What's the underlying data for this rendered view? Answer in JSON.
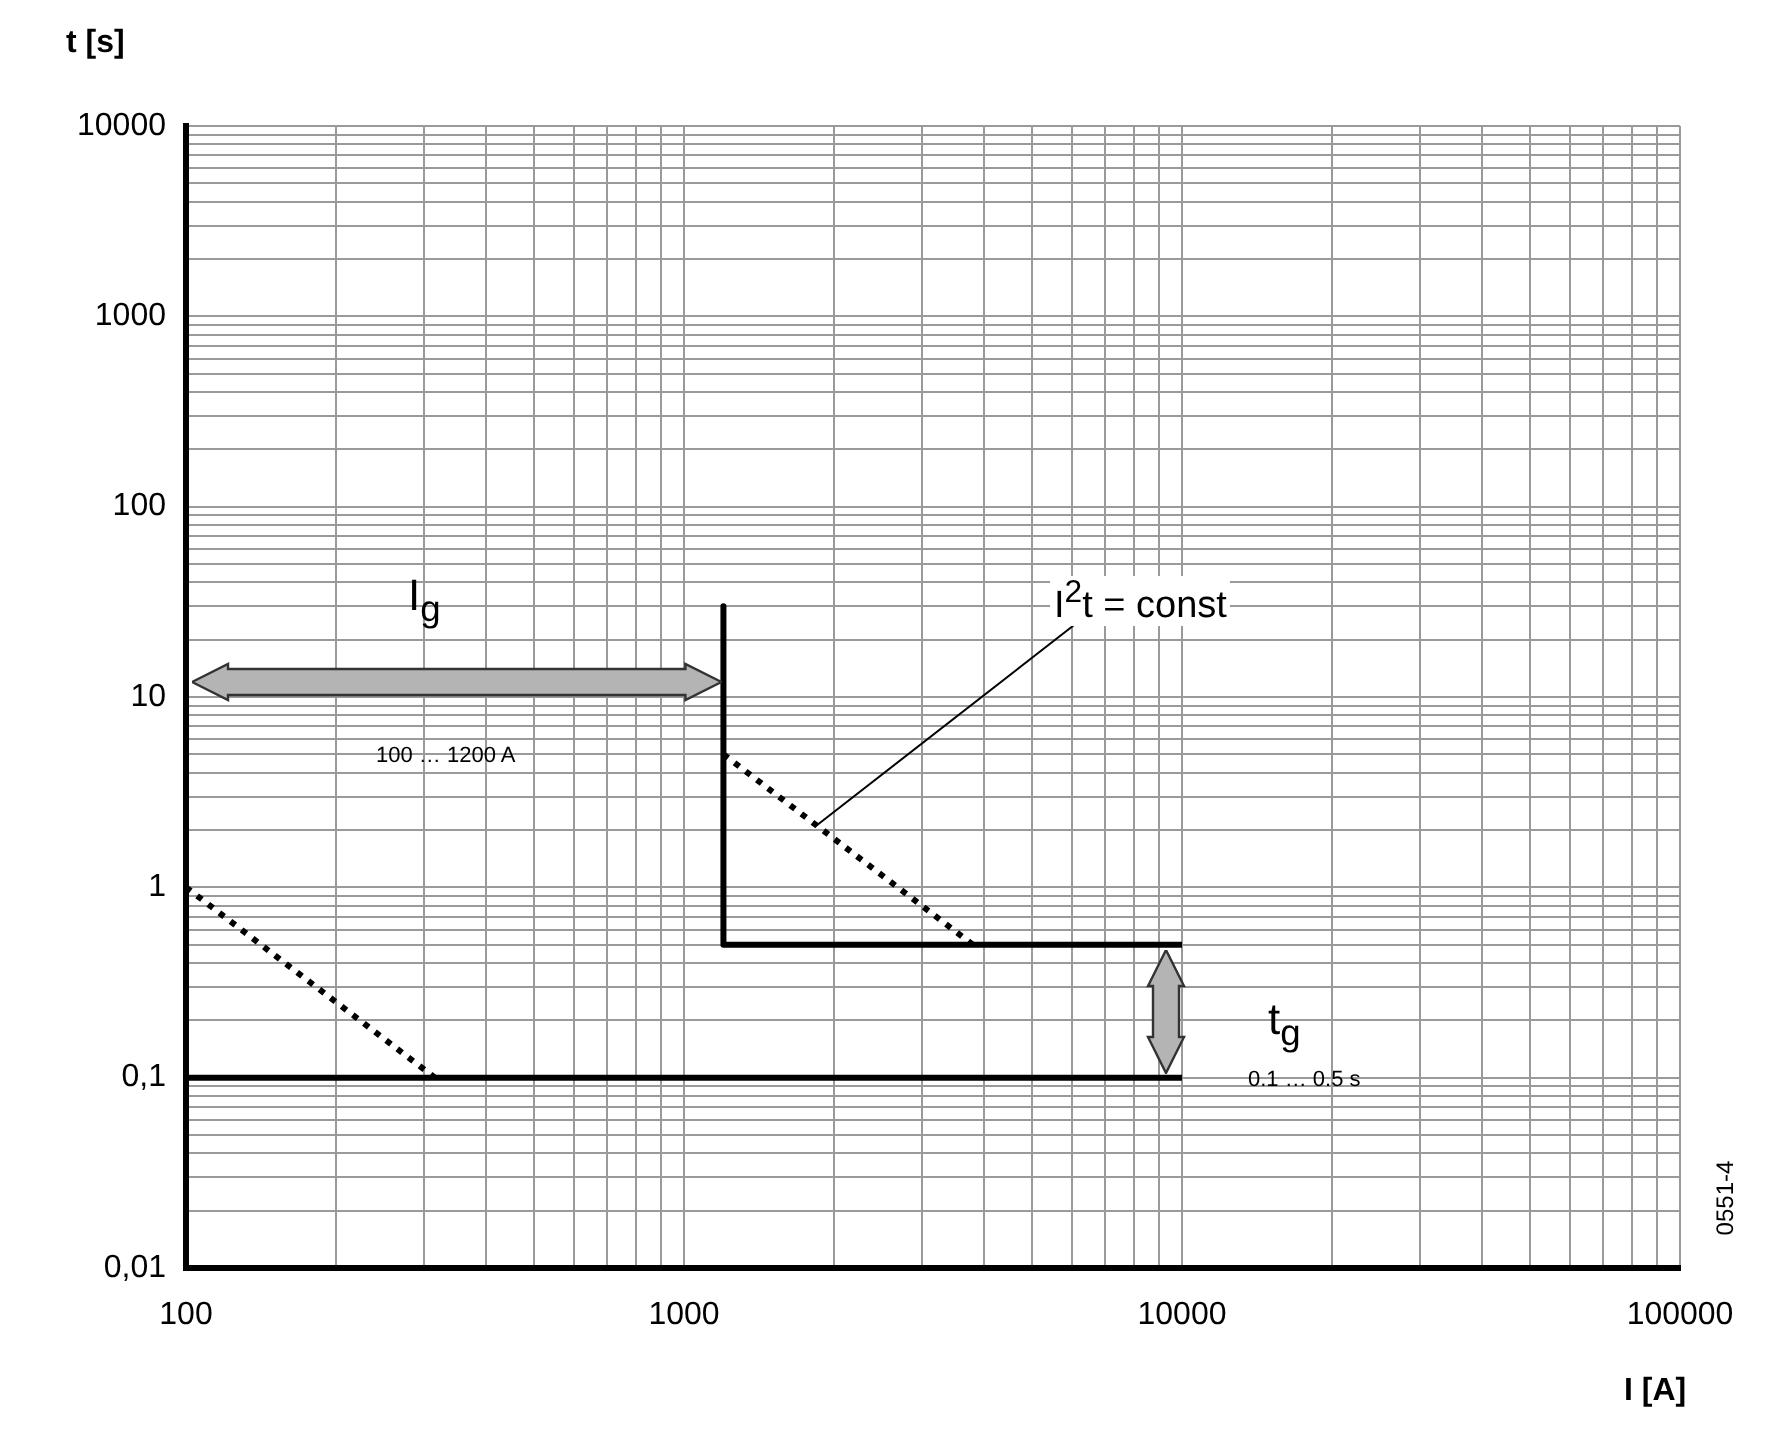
{
  "chart_data": {
    "type": "line",
    "xlabel": "I [A]",
    "ylabel": "t [s]",
    "log": "xy",
    "grid": true,
    "legend": false,
    "marker": "none",
    "xlim": [
      100,
      100000
    ],
    "ylim": [
      0.01,
      10000
    ],
    "xticks": [
      100,
      {
        "value": 200,
        "label": null
      },
      {
        "value": 300,
        "label": null
      },
      {
        "value": 400,
        "label": null
      },
      {
        "value": 500,
        "label": null
      },
      {
        "value": 600,
        "label": null
      },
      {
        "value": 700,
        "label": null
      },
      {
        "value": 800,
        "label": null
      },
      {
        "value": 900,
        "label": null
      },
      1000,
      {
        "value": 2000,
        "label": null
      },
      {
        "value": 3000,
        "label": null
      },
      {
        "value": 4000,
        "label": null
      },
      {
        "value": 5000,
        "label": null
      },
      {
        "value": 6000,
        "label": null
      },
      {
        "value": 7000,
        "label": null
      },
      {
        "value": 8000,
        "label": null
      },
      {
        "value": 9000,
        "label": null
      },
      10000,
      {
        "value": 20000,
        "label": null
      },
      {
        "value": 30000,
        "label": null
      },
      {
        "value": 40000,
        "label": null
      },
      {
        "value": 50000,
        "label": null
      },
      {
        "value": 60000,
        "label": null
      },
      {
        "value": 70000,
        "label": null
      },
      {
        "value": 80000,
        "label": null
      },
      {
        "value": 90000,
        "label": null
      },
      100000
    ],
    "yticks": [
      {
        "value": 0.01,
        "label": "0,01"
      },
      {
        "value": 0.02,
        "label": null
      },
      {
        "value": 0.03,
        "label": null
      },
      {
        "value": 0.04,
        "label": null
      },
      {
        "value": 0.05,
        "label": null
      },
      {
        "value": 0.06,
        "label": null
      },
      {
        "value": 0.07,
        "label": null
      },
      {
        "value": 0.08,
        "label": null
      },
      {
        "value": 0.09,
        "label": null
      },
      {
        "value": 0.1,
        "label": "0,1"
      },
      {
        "value": 0.2,
        "label": null
      },
      {
        "value": 0.3,
        "label": null
      },
      {
        "value": 0.4,
        "label": null
      },
      {
        "value": 0.5,
        "label": null
      },
      {
        "value": 0.6,
        "label": null
      },
      {
        "value": 0.7,
        "label": null
      },
      {
        "value": 0.8,
        "label": null
      },
      {
        "value": 0.9,
        "label": null
      },
      1,
      {
        "value": 2,
        "label": null
      },
      {
        "value": 3,
        "label": null
      },
      {
        "value": 4,
        "label": null
      },
      {
        "value": 5,
        "label": null
      },
      {
        "value": 6,
        "label": null
      },
      {
        "value": 7,
        "label": null
      },
      {
        "value": 8,
        "label": null
      },
      {
        "value": 9,
        "label": null
      },
      10,
      {
        "value": 20,
        "label": null
      },
      {
        "value": 30,
        "label": null
      },
      {
        "value": 40,
        "label": null
      },
      {
        "value": 50,
        "label": null
      },
      {
        "value": 60,
        "label": null
      },
      {
        "value": 70,
        "label": null
      },
      {
        "value": 80,
        "label": null
      },
      {
        "value": 90,
        "label": null
      },
      100,
      {
        "value": 200,
        "label": null
      },
      {
        "value": 300,
        "label": null
      },
      {
        "value": 400,
        "label": null
      },
      {
        "value": 500,
        "label": null
      },
      {
        "value": 600,
        "label": null
      },
      {
        "value": 700,
        "label": null
      },
      {
        "value": 800,
        "label": null
      },
      {
        "value": 900,
        "label": null
      },
      1000,
      {
        "value": 2000,
        "label": null
      },
      {
        "value": 3000,
        "label": null
      },
      {
        "value": 4000,
        "label": null
      },
      {
        "value": 5000,
        "label": null
      },
      {
        "value": 6000,
        "label": null
      },
      {
        "value": 7000,
        "label": null
      },
      {
        "value": 8000,
        "label": null
      },
      {
        "value": 9000,
        "label": null
      },
      10000
    ],
    "series": [
      {
        "color": "#000000",
        "line_style": "solid",
        "x": [
          100,
          100,
          10000
        ],
        "values": [
          30,
          0.1,
          0.1
        ]
      },
      {
        "color": "#000000",
        "line_style": "dotted",
        "x": [
          100,
          316
        ],
        "values": [
          1,
          0.1
        ]
      },
      {
        "color": "#000000",
        "line_style": "solid",
        "x": [
          1200,
          1200,
          10000
        ],
        "values": [
          30,
          0.5,
          0.5
        ]
      },
      {
        "color": "#000000",
        "line_style": "dotted",
        "x": [
          1200,
          3800
        ],
        "values": [
          5,
          0.5
        ]
      }
    ],
    "annotations": [
      "I$_{g}$",
      "100 … 1200 A",
      {
        "text": "I$^{2}$t = const",
        "x": 1840,
        "y": 2.1
      },
      "t$_{g}$",
      "0.1 … 0.5 s",
      "0551-4"
    ]
  }
}
